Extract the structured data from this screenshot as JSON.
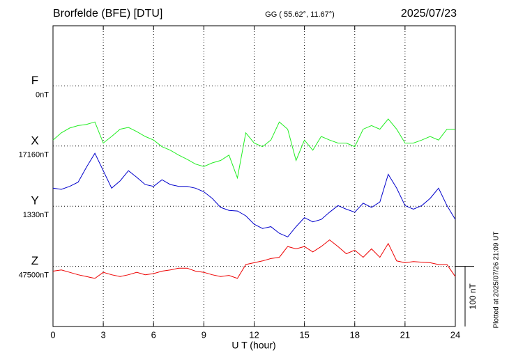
{
  "chart_data": {
    "type": "line",
    "title": "Brorfelde (BFE)  [DTU]",
    "subtitle": "GG ( 55.62°,  11.67°)",
    "date": "2025/07/23",
    "x_label": "U T (hour)",
    "footnote": "Plotted at 2025/07/26 21:09 UT",
    "xlim": [
      0,
      24
    ],
    "xticks": [
      0,
      3,
      6,
      9,
      12,
      15,
      18,
      21,
      24
    ],
    "grid": true,
    "scale_bar": {
      "value": 100,
      "label": "100 nT"
    },
    "x": [
      0,
      0.5,
      1,
      1.5,
      2,
      2.5,
      3,
      3.5,
      4,
      4.5,
      5,
      5.5,
      6,
      6.5,
      7,
      7.5,
      8,
      8.5,
      9,
      9.5,
      10,
      10.5,
      11,
      11.5,
      12,
      12.5,
      13,
      13.5,
      14,
      14.5,
      15,
      15.5,
      16,
      16.5,
      17,
      17.5,
      18,
      18.5,
      19,
      19.5,
      20,
      20.5,
      21,
      21.5,
      22,
      22.5,
      23,
      23.5,
      24
    ],
    "series": [
      {
        "name": "F",
        "color": "#f0b000",
        "baseline": {
          "value": 0,
          "label": "0nT"
        }
      },
      {
        "name": "X",
        "color": "#22ee22",
        "baseline": {
          "value": 17160,
          "label": "17160nT"
        },
        "values": [
          17170,
          17182,
          17190,
          17194,
          17196,
          17200,
          17165,
          17176,
          17188,
          17191,
          17184,
          17176,
          17170,
          17159,
          17153,
          17145,
          17138,
          17130,
          17126,
          17132,
          17136,
          17145,
          17107,
          17182,
          17165,
          17159,
          17170,
          17200,
          17188,
          17136,
          17170,
          17153,
          17176,
          17170,
          17165,
          17165,
          17159,
          17188,
          17194,
          17188,
          17205,
          17188,
          17165,
          17165,
          17170,
          17176,
          17170,
          17188,
          17188
        ]
      },
      {
        "name": "Y",
        "color": "#0000cc",
        "baseline": {
          "value": 1330,
          "label": "1330nT"
        },
        "values": [
          1360,
          1358,
          1363,
          1370,
          1395,
          1418,
          1389,
          1360,
          1372,
          1389,
          1378,
          1366,
          1363,
          1374,
          1366,
          1363,
          1363,
          1360,
          1354,
          1343,
          1328,
          1323,
          1322,
          1314,
          1300,
          1293,
          1296,
          1285,
          1279,
          1296,
          1311,
          1304,
          1308,
          1320,
          1331,
          1325,
          1320,
          1335,
          1328,
          1337,
          1383,
          1360,
          1331,
          1325,
          1331,
          1343,
          1360,
          1331,
          1308
        ]
      },
      {
        "name": "Z",
        "color": "#ee0000",
        "baseline": {
          "value": 47500,
          "label": "47500nT"
        },
        "values": [
          47492,
          47494,
          47490,
          47486,
          47483,
          47480,
          47490,
          47486,
          47483,
          47486,
          47490,
          47486,
          47488,
          47492,
          47494,
          47497,
          47497,
          47492,
          47490,
          47486,
          47483,
          47485,
          47480,
          47503,
          47506,
          47509,
          47513,
          47515,
          47533,
          47529,
          47533,
          47524,
          47533,
          47544,
          47533,
          47521,
          47527,
          47515,
          47529,
          47515,
          47538,
          47509,
          47506,
          47508,
          47507,
          47506,
          47503,
          47503,
          47483
        ]
      }
    ]
  }
}
